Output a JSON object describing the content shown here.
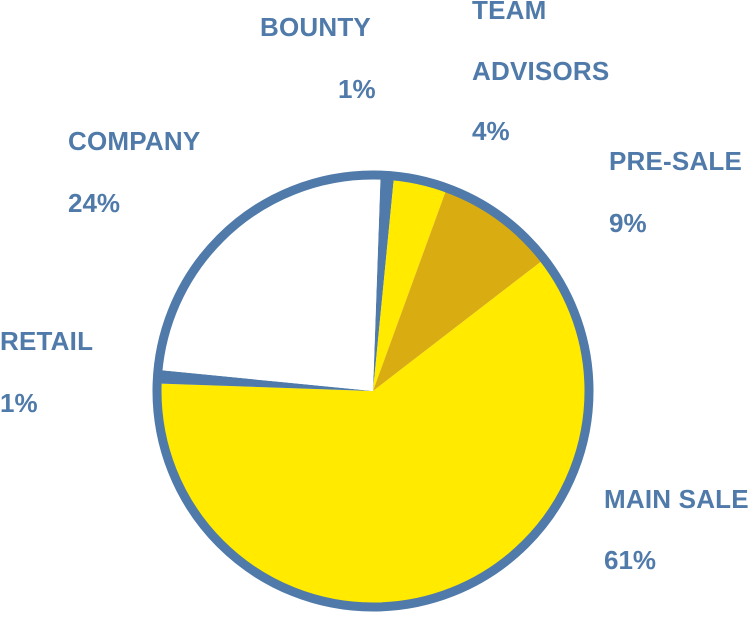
{
  "chart_data": {
    "type": "pie",
    "title": "",
    "slices": [
      {
        "label": "BOUNTY",
        "value": 1,
        "percent_label": "1%",
        "color": "#4f7aa9"
      },
      {
        "label": "TEAM ADVISORS",
        "label_lines": [
          "TEAM",
          "ADVISORS"
        ],
        "value": 4,
        "percent_label": "4%",
        "color": "#ffea00"
      },
      {
        "label": "PRE-SALE",
        "value": 9,
        "percent_label": "9%",
        "color": "#d9ac12"
      },
      {
        "label": "MAIN SALE",
        "value": 61,
        "percent_label": "61%",
        "color": "#ffea00"
      },
      {
        "label": "RETAIL",
        "value": 1,
        "percent_label": "1%",
        "color": "#4f7aa9"
      },
      {
        "label": "COMPANY",
        "value": 24,
        "percent_label": "24%",
        "color": "#ffffff"
      }
    ],
    "outline_color": "#4f7aa9",
    "label_color": "#4f7aa9",
    "legend": "none"
  }
}
